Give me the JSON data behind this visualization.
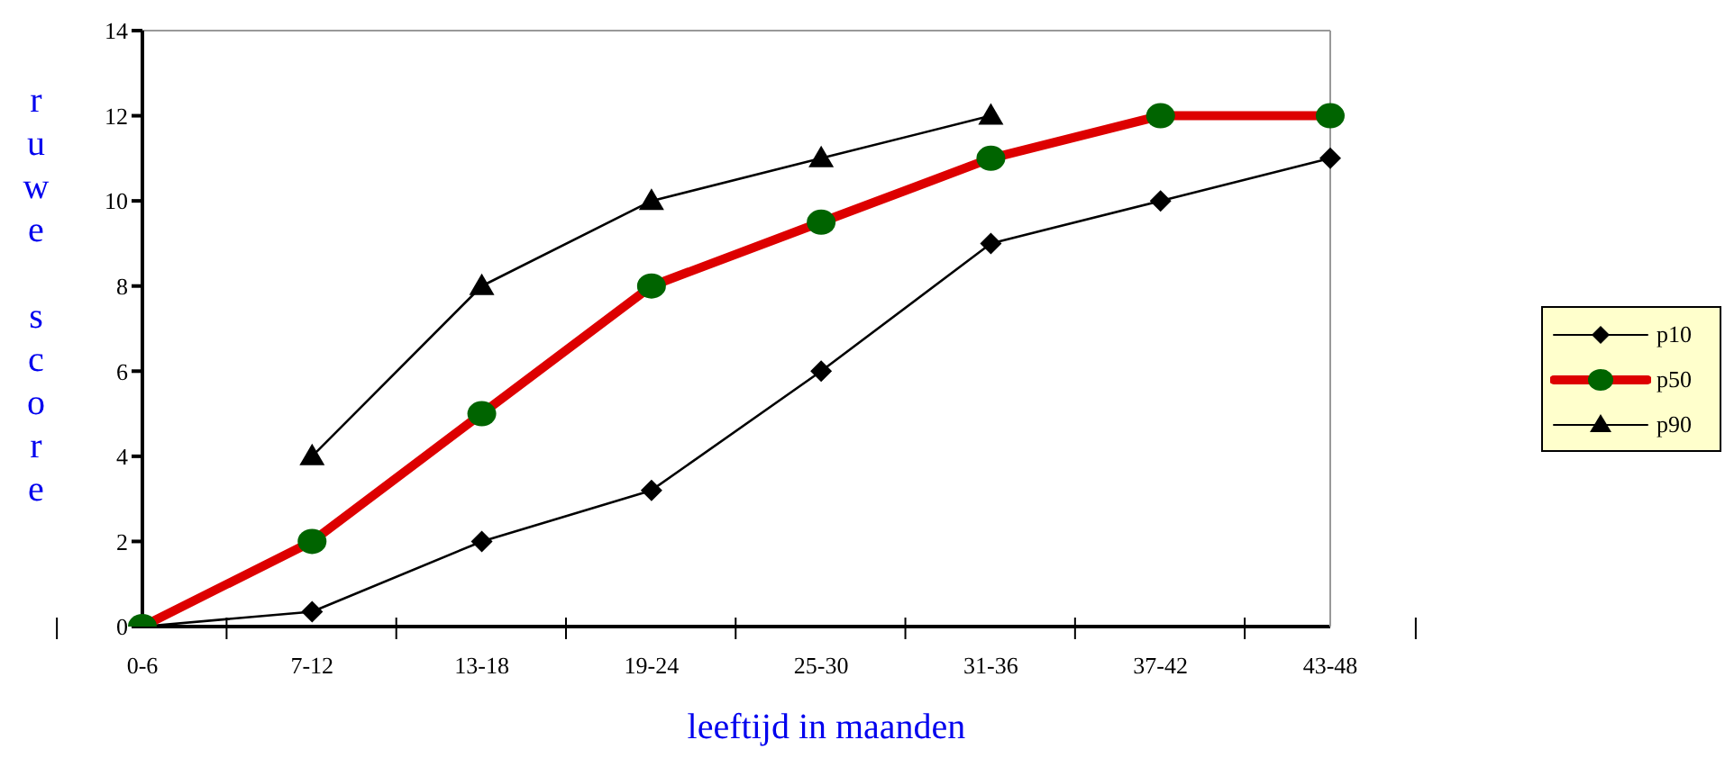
{
  "chart_data": {
    "type": "line",
    "xlabel": "leeftijd in maanden",
    "ylabel": "ruwe score",
    "categories": [
      "0-6",
      "7-12",
      "13-18",
      "19-24",
      "25-30",
      "31-36",
      "37-42",
      "43-48"
    ],
    "series": [
      {
        "name": "p10",
        "color": "#000000",
        "marker": "diamond",
        "values": [
          0,
          0.35,
          2,
          3.2,
          6,
          9,
          10,
          11
        ]
      },
      {
        "name": "p50",
        "color": "#dd0000",
        "colors": [
          "#006400",
          "#006400",
          "#006400",
          "#006400",
          "#006400",
          "#006400",
          "#006400",
          "#006400"
        ],
        "marker": "circle",
        "values": [
          0,
          2,
          5,
          8,
          9.5,
          11,
          12,
          12
        ]
      },
      {
        "name": "p90",
        "color": "#000000",
        "marker": "triangle",
        "values": [
          null,
          4,
          8,
          10,
          11,
          12,
          null,
          null
        ]
      }
    ],
    "ylim": [
      0,
      14
    ],
    "yticks": [
      0,
      2,
      4,
      6,
      8,
      10,
      12,
      14
    ],
    "legend": "right",
    "line_style": "solid"
  }
}
